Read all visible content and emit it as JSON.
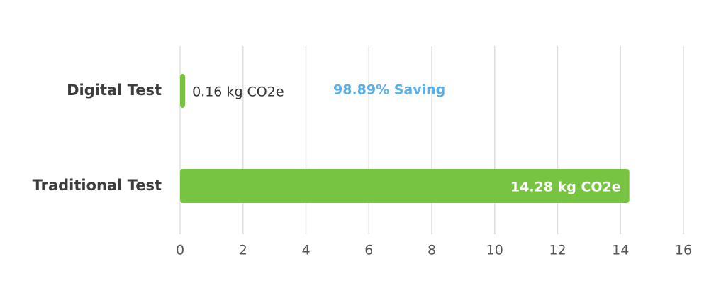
{
  "chart_data": {
    "type": "hbar",
    "categories": [
      "Digital Test",
      "Traditional Test"
    ],
    "values": [
      0.16,
      14.28
    ],
    "value_labels": [
      "0.16 kg CO2e",
      "14.28 kg CO2e"
    ],
    "annotation": "98.89% Saving",
    "color": "#76c442",
    "xlim": [
      0,
      16
    ],
    "xticks": [
      0,
      2,
      4,
      6,
      8,
      10,
      12,
      14,
      16
    ],
    "grid": true
  }
}
